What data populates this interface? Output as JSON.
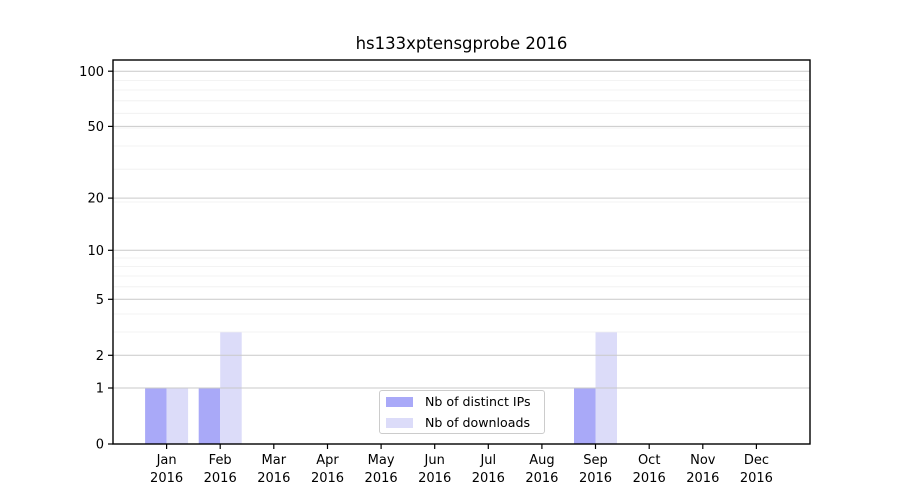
{
  "title": "hs133xptensgprobe 2016",
  "legend": {
    "items": [
      {
        "label": "Nb of distinct IPs",
        "color": "#a9a9f8"
      },
      {
        "label": "Nb of downloads",
        "color": "#dcdcf9"
      }
    ]
  },
  "chart_data": {
    "type": "bar",
    "title": "hs133xptensgprobe 2016",
    "categories": [
      "Jan 2016",
      "Feb 2016",
      "Mar 2016",
      "Apr 2016",
      "May 2016",
      "Jun 2016",
      "Jul 2016",
      "Aug 2016",
      "Sep 2016",
      "Oct 2016",
      "Nov 2016",
      "Dec 2016"
    ],
    "month_labels": [
      "Jan",
      "Feb",
      "Mar",
      "Apr",
      "May",
      "Jun",
      "Jul",
      "Aug",
      "Sep",
      "Oct",
      "Nov",
      "Dec"
    ],
    "year_label": "2016",
    "series": [
      {
        "name": "Nb of distinct IPs",
        "color": "#a9a9f8",
        "values": [
          1,
          1,
          0,
          0,
          0,
          0,
          0,
          0,
          1,
          0,
          0,
          0
        ]
      },
      {
        "name": "Nb of downloads",
        "color": "#dcdcf9",
        "values": [
          1,
          3,
          0,
          0,
          0,
          0,
          0,
          0,
          3,
          0,
          0,
          0
        ]
      }
    ],
    "xlabel": "",
    "ylabel": "",
    "yscale": "log10(1+y)",
    "yticks": [
      0,
      1,
      2,
      5,
      10,
      20,
      50,
      100
    ],
    "minor_yticks": [
      3,
      4,
      6,
      7,
      8,
      9,
      19,
      29,
      39,
      49,
      59,
      69,
      79,
      89
    ],
    "ylim": [
      0,
      115
    ],
    "grid": "horizontal",
    "legend_position": "lower-center-inside",
    "colors": {
      "axis": "#000000",
      "tick_label": "#000000",
      "grid_major": "#c9c9c9",
      "grid_minor": "#efefef",
      "background": "#ffffff"
    }
  }
}
